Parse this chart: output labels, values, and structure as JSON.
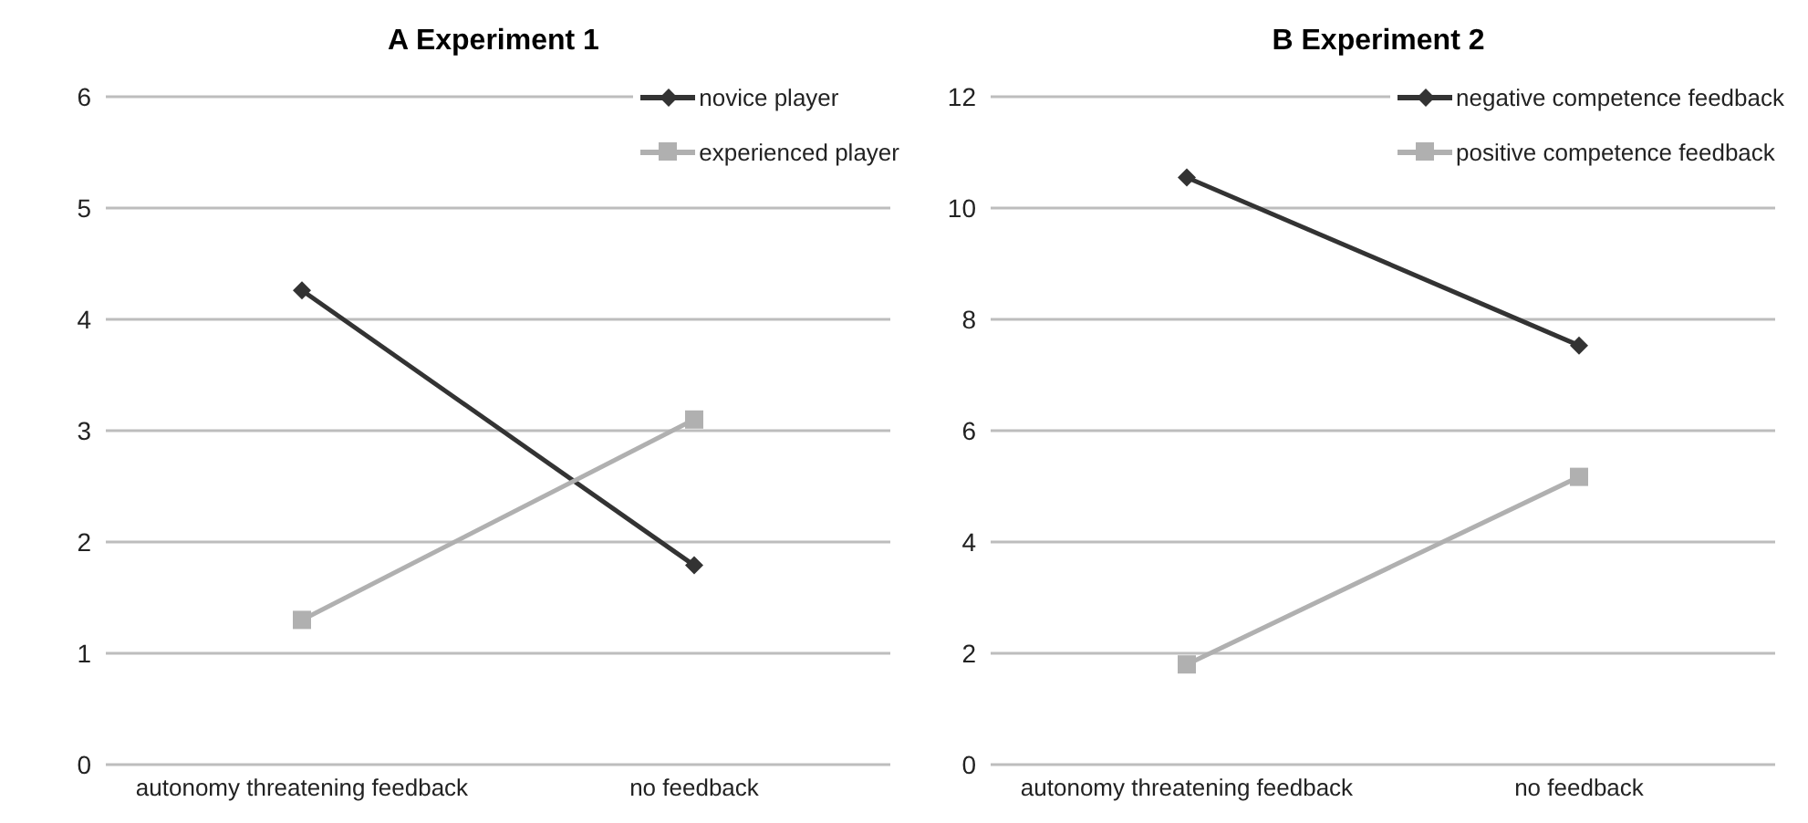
{
  "chart_data": [
    {
      "type": "line",
      "title": "A Experiment 1",
      "categories": [
        "autonomy threatening feedback",
        "no feedback"
      ],
      "ylim": [
        0,
        6
      ],
      "yticks": [
        0,
        1,
        2,
        3,
        4,
        5,
        6
      ],
      "grid": "y",
      "legend": "top right",
      "series": [
        {
          "name": "novice player",
          "color": "#333333",
          "marker": "diamond",
          "values": [
            4.26,
            1.79
          ]
        },
        {
          "name": "experienced player",
          "color": "#b0b0b0",
          "marker": "square",
          "values": [
            1.3,
            3.1
          ]
        }
      ]
    },
    {
      "type": "line",
      "title": "B Experiment 2",
      "categories": [
        "autonomy threatening feedback",
        "no feedback"
      ],
      "ylim": [
        0,
        12
      ],
      "yticks": [
        0,
        2,
        4,
        6,
        8,
        10,
        12
      ],
      "grid": "y",
      "legend": "top right",
      "series": [
        {
          "name": "negative competence feedback",
          "color": "#333333",
          "marker": "diamond",
          "values": [
            10.55,
            7.53
          ]
        },
        {
          "name": "positive competence feedback",
          "color": "#b0b0b0",
          "marker": "square",
          "values": [
            1.8,
            5.17
          ]
        }
      ]
    }
  ]
}
